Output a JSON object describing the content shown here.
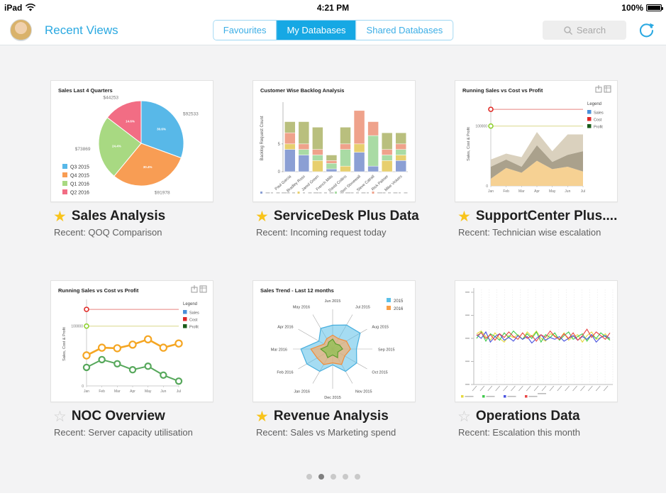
{
  "status_bar": {
    "device": "iPad",
    "time": "4:21 PM",
    "battery": "100%"
  },
  "header": {
    "title": "Recent Views",
    "tabs": [
      {
        "label": "Favourites"
      },
      {
        "label": "My Databases"
      },
      {
        "label": "Shared Databases"
      }
    ],
    "active_tab": 1,
    "search_placeholder": "Search",
    "accent_color": "#16a8e4"
  },
  "icons": {
    "star_filled": "★",
    "star_outline": "☆"
  },
  "pagination": {
    "count": 5,
    "active": 1
  },
  "cards": [
    {
      "title": "Sales Analysis",
      "subtitle": "Recent: QOQ Comparison",
      "favourite": true,
      "chart": {
        "type": "pie",
        "title": "Sales Last 4 Quarters",
        "slices": [
          {
            "name": "Q3 2015",
            "value": 92533,
            "label": "$92533",
            "color": "#58b8e8"
          },
          {
            "name": "Q4 2015",
            "value": 91978,
            "label": "$91978",
            "color": "#f89d54"
          },
          {
            "name": "Q1 2016",
            "value": 73869,
            "label": "$73869",
            "color": "#a8d982"
          },
          {
            "name": "Q2 2016",
            "value": 44253,
            "label": "$44253",
            "color": "#f26d84"
          }
        ],
        "legend_position": "bottom-left"
      }
    },
    {
      "title": "ServiceDesk Plus Data",
      "subtitle": "Recent: Incoming request today",
      "favourite": true,
      "chart": {
        "type": "stacked_bar",
        "title": "Customer Wise Backlog Analysis",
        "ylabel": "Backlog Request Count",
        "y_ticks": [
          0,
          5
        ],
        "ymax": 12,
        "categories": [
          "Paul Garcia",
          "Bradley Ross",
          "Jared Green",
          "French Mills",
          "David Collins",
          "Terri Stonewall",
          "Steve Catrall",
          "Rick Palmer",
          "Mike Vickers"
        ],
        "series": [
          {
            "name": "blue",
            "color": "#8b9fd4",
            "values": [
              4,
              3,
              0,
              0.5,
              0,
              3.5,
              1,
              0,
              2
            ]
          },
          {
            "name": "yellow",
            "color": "#e7cf6e",
            "values": [
              1,
              0,
              2,
              0,
              1,
              1.5,
              0,
              2,
              1
            ]
          },
          {
            "name": "green",
            "color": "#a9dba4",
            "values": [
              0,
              1,
              1,
              1,
              3,
              0,
              5.5,
              1,
              1
            ]
          },
          {
            "name": "salmon",
            "color": "#efa28b",
            "values": [
              2,
              1,
              1,
              0.5,
              1,
              6,
              2.5,
              1,
              1
            ]
          },
          {
            "name": "olive",
            "color": "#b9bf7e",
            "values": [
              2,
              4,
              4,
              1,
              3,
              0,
              0,
              3,
              2
            ]
          }
        ]
      }
    },
    {
      "title": "SupportCenter Plus....",
      "subtitle": "Recent: Technician wise escalation",
      "favourite": true,
      "chart": {
        "type": "stacked_area",
        "title": "Running Sales vs Cost vs Profit",
        "ylabel": "Sales, Cost & Profit",
        "y_ticks": [
          "100000",
          "0"
        ],
        "ymax": 140,
        "corner_icons": true,
        "legend": {
          "title": "Legend",
          "items": [
            {
              "label": "Sales",
              "color": "#4a90d9"
            },
            {
              "label": "Cost",
              "color": "#e02727"
            },
            {
              "label": "Profit",
              "color": "#1a5c1a"
            }
          ]
        },
        "categories": [
          "Jan",
          "Feb",
          "Mar",
          "Apr",
          "May",
          "Jun",
          "Jul"
        ],
        "layers": [
          {
            "color": "#f6cf8d",
            "values": [
              12,
              30,
              22,
              42,
              28,
              32,
              24
            ]
          },
          {
            "color": "#a59c86",
            "values": [
              20,
              14,
              10,
              26,
              12,
              20,
              34
            ]
          },
          {
            "color": "#d8cfba",
            "values": [
              12,
              10,
              16,
              22,
              18,
              34,
              28
            ]
          }
        ],
        "ref_lines": [
          {
            "value": 128,
            "color": "#e8837f",
            "marker": "#e02b27"
          },
          {
            "value": 100,
            "color": "#d9d789",
            "marker": "#8fd130",
            "tick": "100000"
          }
        ]
      }
    },
    {
      "title": "NOC Overview",
      "subtitle": "Recent: Server capacity utilisation",
      "favourite": false,
      "chart": {
        "type": "line",
        "title": "Running Sales vs Cost vs Profit",
        "ylabel": "Sales, Cost & Profit",
        "y_ticks": [
          "100000",
          "0"
        ],
        "ymax": 140,
        "corner_icons": true,
        "legend": {
          "title": "Legend",
          "items": [
            {
              "label": "Sales",
              "color": "#4a90d9"
            },
            {
              "label": "Cost",
              "color": "#e02727"
            },
            {
              "label": "Profit",
              "color": "#1a5c1a"
            }
          ]
        },
        "categories": [
          "Jan",
          "Feb",
          "Mar",
          "Apr",
          "May",
          "Jun",
          "Jul"
        ],
        "series": [
          {
            "name": "cost",
            "color": "#f5a623",
            "values": [
              51,
              64,
              63,
              69,
              78,
              64,
              71
            ]
          },
          {
            "name": "profit",
            "color": "#57a85c",
            "values": [
              31,
              44,
              37,
              27,
              33,
              18,
              8
            ]
          }
        ],
        "ref_lines": [
          {
            "value": 128,
            "color": "#e8837f",
            "marker": "#e02b27"
          },
          {
            "value": 100,
            "color": "#d9d789",
            "marker": "#8fd130",
            "tick": "100000"
          }
        ]
      }
    },
    {
      "title": "Revenue Analysis",
      "subtitle": "Recent: Sales vs Marketing spend",
      "favourite": true,
      "chart": {
        "type": "radar",
        "title": "Sales Trend - Last 12 months",
        "axes": [
          "Jun 2015",
          "Jul 2015",
          "Aug 2015",
          "Sep 2015",
          "Oct 2015",
          "Nov 2015",
          "Dec 2015",
          "Jan 2016",
          "Feb 2016",
          "Mar 2016",
          "Apr 2016",
          "May 2016"
        ],
        "max": 10,
        "legend": [
          {
            "label": "2015",
            "color": "#5bc0e8"
          },
          {
            "label": "2016",
            "color": "#f9a048"
          }
        ],
        "series": [
          {
            "name": "outer",
            "color": "#45aede",
            "fill": "rgba(91,192,232,0.55)",
            "values": [
              6,
              7,
              8,
              6,
              7,
              6.5,
              4,
              6.5,
              7.5,
              8,
              4,
              6
            ]
          },
          {
            "name": "middle",
            "color": "#f08c3a",
            "fill": "rgba(249,171,100,0.65)",
            "values": [
              3.5,
              3,
              4,
              4.5,
              3.5,
              4.5,
              3.5,
              4.5,
              4.5,
              5.5,
              2.5,
              3
            ]
          },
          {
            "name": "inner",
            "color": "#5d9e2f",
            "fill": "rgba(125,193,66,0.6)",
            "values": [
              2.5,
              1.5,
              2,
              2.5,
              1.5,
              2.5,
              1.5,
              2.5,
              2,
              3,
              1.5,
              2
            ]
          }
        ]
      }
    },
    {
      "title": "Operations Data",
      "subtitle": "Recent: Escalation this month",
      "favourite": false,
      "chart": {
        "type": "multi_line",
        "ymax": 100,
        "series": [
          {
            "name": "yellow",
            "color": "#e6d93c",
            "values": [
              55,
              58,
              52,
              48,
              56,
              50,
              46,
              53,
              51,
              54,
              49,
              57,
              52,
              58,
              50,
              47,
              55,
              53,
              49,
              56,
              48,
              52,
              54,
              46,
              53,
              57,
              49,
              51,
              55,
              48
            ]
          },
          {
            "name": "green",
            "color": "#3fc94b",
            "values": [
              50,
              57,
              47,
              55,
              52,
              48,
              56,
              51,
              58,
              53,
              49,
              55,
              50,
              57,
              46,
              54,
              51,
              56,
              48,
              53,
              57,
              49,
              52,
              55,
              47,
              54,
              50,
              56,
              52,
              48
            ]
          },
          {
            "name": "blue",
            "color": "#4953e0",
            "values": [
              54,
              50,
              57,
              46,
              52,
              55,
              48,
              51,
              47,
              53,
              49,
              52,
              45,
              50,
              54,
              48,
              51,
              49,
              52,
              47,
              50,
              53,
              48,
              52,
              49,
              54,
              46,
              51,
              53,
              50
            ]
          },
          {
            "name": "red",
            "color": "#e84444",
            "values": [
              53,
              56,
              50,
              54,
              48,
              55,
              51,
              57,
              52,
              49,
              56,
              50,
              53,
              47,
              54,
              51,
              58,
              52,
              49,
              55,
              50,
              56,
              48,
              53,
              60,
              51,
              57,
              53,
              49,
              56
            ]
          }
        ]
      }
    }
  ]
}
